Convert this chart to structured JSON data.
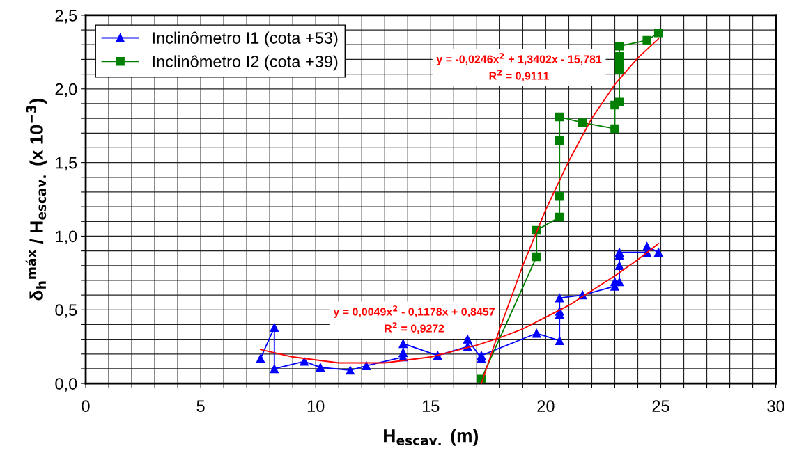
{
  "chart_data": {
    "type": "line",
    "xlabel": "H$_{escav.}$ (m)",
    "ylabel": "δ$_{h}$$^{máx}$ / H$_{escav.}$ (x 10$^{−3}$)",
    "xlim": [
      0,
      30
    ],
    "xticks": [
      0,
      {
        "value": 1,
        "label": null
      },
      {
        "value": 2,
        "label": null
      },
      {
        "value": 3,
        "label": null
      },
      {
        "value": 4,
        "label": null
      },
      5,
      {
        "value": 6,
        "label": null
      },
      {
        "value": 7,
        "label": null
      },
      {
        "value": 8,
        "label": null
      },
      {
        "value": 9,
        "label": null
      },
      10,
      {
        "value": 11,
        "label": null
      },
      {
        "value": 12,
        "label": null
      },
      {
        "value": 13,
        "label": null
      },
      {
        "value": 14,
        "label": null
      },
      15,
      {
        "value": 16,
        "label": null
      },
      {
        "value": 17,
        "label": null
      },
      {
        "value": 18,
        "label": null
      },
      {
        "value": 19,
        "label": null
      },
      20,
      {
        "value": 21,
        "label": null
      },
      {
        "value": 22,
        "label": null
      },
      {
        "value": 23,
        "label": null
      },
      {
        "value": 24,
        "label": null
      },
      25,
      {
        "value": 26,
        "label": null
      },
      {
        "value": 27,
        "label": null
      },
      {
        "value": 28,
        "label": null
      },
      {
        "value": 29,
        "label": null
      },
      30
    ],
    "ylim": [
      0,
      2.5
    ],
    "yticks": [
      {
        "value": 0,
        "label": "0,0"
      },
      {
        "value": 0.1,
        "label": null
      },
      {
        "value": 0.2,
        "label": null
      },
      {
        "value": 0.3,
        "label": null
      },
      {
        "value": 0.4,
        "label": null
      },
      {
        "value": 0.5,
        "label": "0,5"
      },
      {
        "value": 0.6,
        "label": null
      },
      {
        "value": 0.7,
        "label": null
      },
      {
        "value": 0.8,
        "label": null
      },
      {
        "value": 0.9,
        "label": null
      },
      {
        "value": 1.0,
        "label": "1,0"
      },
      {
        "value": 1.1,
        "label": null
      },
      {
        "value": 1.2,
        "label": null
      },
      {
        "value": 1.3,
        "label": null
      },
      {
        "value": 1.4,
        "label": null
      },
      {
        "value": 1.5,
        "label": "1,5"
      },
      {
        "value": 1.6,
        "label": null
      },
      {
        "value": 1.7,
        "label": null
      },
      {
        "value": 1.8,
        "label": null
      },
      {
        "value": 1.9,
        "label": null
      },
      {
        "value": 2.0,
        "label": "2,0"
      },
      {
        "value": 2.1,
        "label": null
      },
      {
        "value": 2.2,
        "label": null
      },
      {
        "value": 2.3,
        "label": null
      },
      {
        "value": 2.4,
        "label": null
      },
      {
        "value": 2.5,
        "label": "2,5"
      }
    ],
    "grid": true,
    "legend": "top left",
    "line_style": "solid",
    "series": [
      {
        "name": "Inclinômetro I1 (cota +53)",
        "color": "#0000ff",
        "marker": "triangle",
        "x": [
          7.6,
          8.2,
          8.2,
          9.5,
          10.2,
          11.5,
          12.2,
          13.8,
          13.8,
          13.8,
          15.3,
          16.6,
          16.6,
          17.2,
          17.2,
          19.6,
          20.6,
          20.6,
          20.6,
          20.6,
          21.6,
          23.0,
          23.0,
          23.2,
          23.2,
          23.2,
          23.2,
          24.4,
          24.4,
          24.9
        ],
        "values": [
          0.17,
          0.38,
          0.1,
          0.15,
          0.11,
          0.09,
          0.12,
          0.18,
          0.21,
          0.27,
          0.19,
          0.25,
          0.3,
          0.17,
          0.19,
          0.34,
          0.29,
          0.47,
          0.49,
          0.58,
          0.6,
          0.66,
          0.69,
          0.69,
          0.8,
          0.87,
          0.89,
          0.89,
          0.93,
          0.89
        ]
      },
      {
        "name": "Inclinômetro I2 (cota +39)",
        "color": "#008000",
        "marker": "square",
        "x": [
          17.2,
          19.6,
          19.6,
          20.6,
          20.6,
          20.6,
          20.6,
          21.6,
          23.0,
          23.0,
          23.2,
          23.2,
          23.2,
          23.2,
          23.2,
          24.4,
          24.9
        ],
        "values": [
          0.03,
          0.86,
          1.04,
          1.13,
          1.27,
          1.65,
          1.81,
          1.77,
          1.73,
          1.89,
          1.91,
          2.13,
          2.19,
          2.22,
          2.29,
          2.33,
          2.38
        ]
      },
      {
        "type": "line",
        "color": "#ff0000",
        "marker": "none",
        "x": [
          7.6,
          9,
          10,
          11,
          12,
          13,
          14,
          15,
          16,
          17,
          18,
          19,
          20,
          21,
          22,
          23,
          24,
          24.9
        ],
        "values": [
          0.23,
          0.18,
          0.16,
          0.14,
          0.14,
          0.14,
          0.16,
          0.18,
          0.22,
          0.26,
          0.31,
          0.37,
          0.45,
          0.53,
          0.63,
          0.73,
          0.84,
          0.95
        ]
      },
      {
        "type": "line",
        "color": "#ff0000",
        "marker": "none",
        "x": [
          17.2,
          18,
          19,
          20,
          21,
          22,
          23,
          24,
          24.9
        ],
        "values": [
          0.0,
          0.37,
          0.8,
          1.18,
          1.51,
          1.8,
          2.03,
          2.21,
          2.34
        ]
      }
    ],
    "annotations": [
      "y = 0,0049x$^{2}$ - 0,1178x + 0,8457\nR$^{2}$ = 0,9272",
      "y = -0,0246x$^{2}$ + 1,3402x - 15,781\nR$^{2}$ = 0,9111"
    ]
  }
}
